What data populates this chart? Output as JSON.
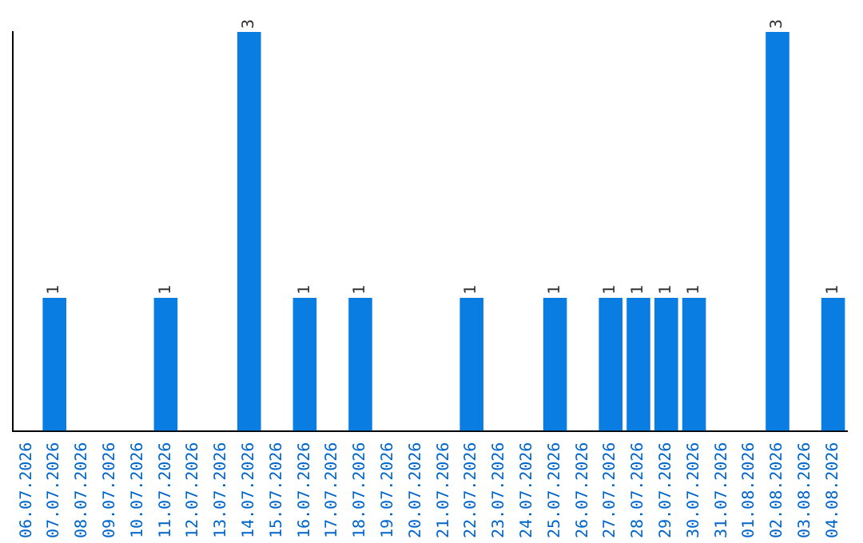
{
  "chart_data": {
    "type": "bar",
    "categories": [
      "06.07.2026",
      "07.07.2026",
      "08.07.2026",
      "09.07.2026",
      "10.07.2026",
      "11.07.2026",
      "12.07.2026",
      "13.07.2026",
      "14.07.2026",
      "15.07.2026",
      "16.07.2026",
      "17.07.2026",
      "18.07.2026",
      "19.07.2026",
      "20.07.2026",
      "21.07.2026",
      "22.07.2026",
      "23.07.2026",
      "24.07.2026",
      "25.07.2026",
      "26.07.2026",
      "27.07.2026",
      "28.07.2026",
      "29.07.2026",
      "30.07.2026",
      "31.07.2026",
      "01.08.2026",
      "02.08.2026",
      "03.08.2026",
      "04.08.2026"
    ],
    "values": [
      0,
      1,
      0,
      0,
      0,
      1,
      0,
      0,
      3,
      0,
      1,
      0,
      1,
      0,
      0,
      0,
      1,
      0,
      0,
      1,
      0,
      1,
      1,
      1,
      1,
      0,
      0,
      3,
      0,
      1
    ],
    "value_labels": [
      null,
      "1",
      null,
      null,
      null,
      "1",
      null,
      null,
      "3",
      null,
      "1",
      null,
      "1",
      null,
      null,
      null,
      "1",
      null,
      null,
      "1",
      null,
      "1",
      "1",
      "1",
      "1",
      null,
      null,
      "3",
      null,
      "1"
    ],
    "color": "#0a7de3",
    "grid": false,
    "legend": false
  }
}
